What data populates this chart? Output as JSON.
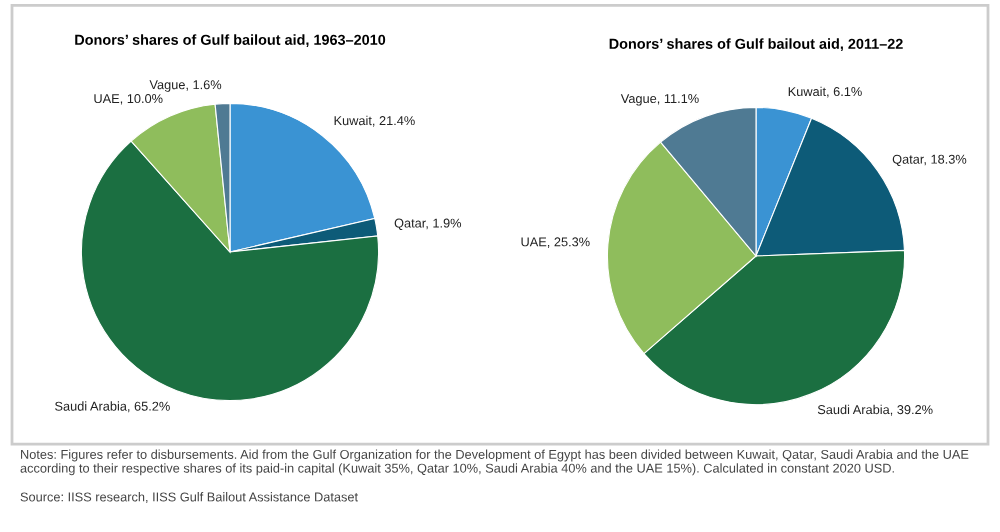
{
  "chart_data": [
    {
      "type": "pie",
      "title": "Donors’ shares of Gulf bailout aid, 1963–2010",
      "categories": [
        "Kuwait",
        "Qatar",
        "Saudi Arabia",
        "UAE",
        "Vague"
      ],
      "values": [
        21.4,
        1.9,
        65.2,
        10.0,
        1.6
      ],
      "colors": [
        "#3a93d3",
        "#0d5b78",
        "#1b6f41",
        "#8fbd5c",
        "#4f7a93"
      ],
      "value_labels": [
        "21.4%",
        "1.9%",
        "65.2%",
        "10.0%",
        "1.6%"
      ]
    },
    {
      "type": "pie",
      "title": "Donors’ shares of Gulf bailout aid, 2011–22",
      "categories": [
        "Kuwait",
        "Qatar",
        "Saudi Arabia",
        "UAE",
        "Vague"
      ],
      "values": [
        6.1,
        18.3,
        39.2,
        25.3,
        11.1
      ],
      "colors": [
        "#3a93d3",
        "#0d5b78",
        "#1b6f41",
        "#8fbd5c",
        "#4f7a93"
      ],
      "value_labels": [
        "6.1%",
        "18.3%",
        "39.2%",
        "25.3%",
        "11.1%"
      ],
      "annotations": [
        "Notes: Figures refer to disbursements. Aid from the Gulf Organization for the Development of Egypt has been divided between Kuwait, Qatar, Saudi Arabia and the UAE according to their respective shares of its paid-in capital (Kuwait 35%, Qatar 10%, Saudi Arabia 40% and the UAE 15%). Calculated in constant 2020 USD.",
        "Source: IISS research, IISS Gulf Bailout Assistance Dataset"
      ]
    }
  ]
}
